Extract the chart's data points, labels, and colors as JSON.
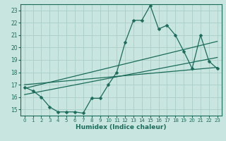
{
  "xlabel": "Humidex (Indice chaleur)",
  "x_ticks": [
    0,
    1,
    2,
    3,
    4,
    5,
    6,
    7,
    8,
    9,
    10,
    11,
    12,
    13,
    14,
    15,
    16,
    17,
    18,
    19,
    20,
    21,
    22,
    23
  ],
  "xlim": [
    -0.5,
    23.5
  ],
  "ylim": [
    14.5,
    23.5
  ],
  "y_ticks": [
    15,
    16,
    17,
    18,
    19,
    20,
    21,
    22,
    23
  ],
  "bg_color": "#c8e6df",
  "grid_color": "#aacfc8",
  "line_color": "#1a6b5a",
  "line1_x": [
    0,
    1,
    2,
    3,
    4,
    5,
    6,
    7,
    8,
    9,
    10,
    11,
    12,
    13,
    14,
    15,
    16,
    17,
    18,
    19,
    20,
    21,
    22,
    23
  ],
  "line1_y": [
    16.8,
    16.5,
    16.0,
    15.2,
    14.8,
    14.8,
    14.8,
    14.7,
    15.9,
    15.9,
    17.0,
    18.0,
    20.4,
    22.2,
    22.2,
    23.4,
    21.5,
    21.8,
    21.0,
    19.7,
    18.3,
    21.0,
    18.9,
    18.3
  ],
  "line2_x": [
    0,
    23
  ],
  "line2_y": [
    16.7,
    20.5
  ],
  "line3_x": [
    0,
    23
  ],
  "line3_y": [
    17.0,
    18.4
  ],
  "line4_x": [
    0,
    23
  ],
  "line4_y": [
    16.2,
    19.2
  ]
}
